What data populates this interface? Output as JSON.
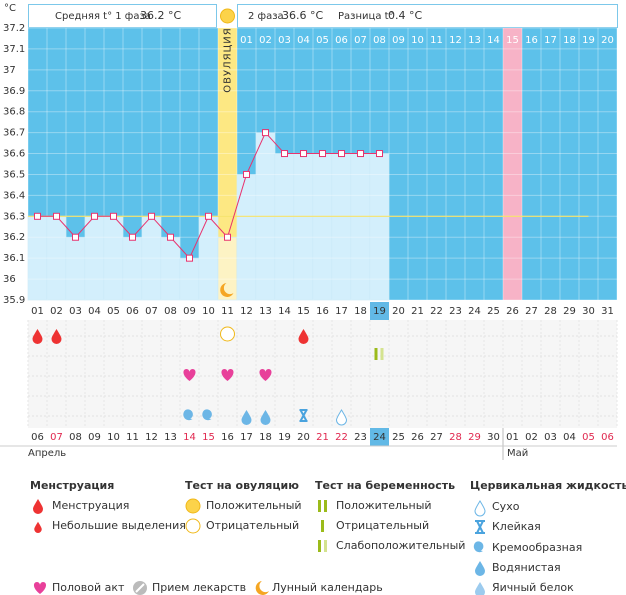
{
  "header": {
    "unit": "°C",
    "phase1_label": "Средняя t° 1 фаза",
    "phase1_value": "36.2 °C",
    "phase2_label": "2 фаза",
    "phase2_value": "36.6 °C",
    "diff_label": "Разница t°",
    "diff_value": "0.4 °C"
  },
  "chart_data": {
    "type": "line",
    "annotation": "ОВУЛЯЦИЯ",
    "categories": [
      "01",
      "02",
      "03",
      "04",
      "05",
      "06",
      "07",
      "08",
      "09",
      "10",
      "11",
      "12",
      "13",
      "14",
      "15",
      "16",
      "17",
      "18",
      "19",
      "20",
      "21",
      "22",
      "23",
      "24",
      "25",
      "26",
      "27",
      "28",
      "29",
      "30",
      "31"
    ],
    "phase2_days": [
      "01",
      "02",
      "03",
      "04",
      "05",
      "06",
      "07",
      "08",
      "09",
      "10",
      "11",
      "12",
      "13",
      "14",
      "15",
      "16",
      "17",
      "18",
      "19",
      "20"
    ],
    "values": [
      36.3,
      36.3,
      36.2,
      36.3,
      36.3,
      36.2,
      36.3,
      36.2,
      36.1,
      36.3,
      36.2,
      36.5,
      36.7,
      36.6,
      36.6,
      36.6,
      36.6,
      36.6,
      36.6,
      null,
      null,
      null,
      null,
      null,
      null,
      null,
      null,
      null,
      null,
      null,
      null
    ],
    "color": "#e8336e",
    "cover_line": 36.3,
    "ylim": [
      35.9,
      37.2
    ],
    "yticks": [
      35.9,
      36,
      36.1,
      36.2,
      36.3,
      36.4,
      36.5,
      36.6,
      36.7,
      36.8,
      36.9,
      37,
      37.1,
      37.2
    ],
    "grid": true,
    "dates": [
      "06",
      "07",
      "08",
      "09",
      "10",
      "11",
      "12",
      "13",
      "14",
      "15",
      "16",
      "17",
      "18",
      "19",
      "20",
      "21",
      "22",
      "23",
      "24",
      "25",
      "26",
      "27",
      "28",
      "29",
      "30",
      "01",
      "02",
      "03",
      "04",
      "05",
      "06"
    ],
    "months": [
      "Апрель",
      "Май"
    ]
  },
  "legend": {
    "menstruation": {
      "title": "Менструация",
      "items": [
        "Менструация",
        "Небольшие выделения"
      ]
    },
    "ovulation_test": {
      "title": "Тест на овуляцию",
      "items": [
        "Положительный",
        "Отрицательный"
      ]
    },
    "pregnancy_test": {
      "title": "Тест на беременность",
      "items": [
        "Положительный",
        "Отрицательный",
        "Слабоположительный"
      ]
    },
    "cervical": {
      "title": "Цервикальная жидкость",
      "items": [
        "Сухо",
        "Клейкая",
        "Кремообразная",
        "Водянистая",
        "Яичный белок"
      ]
    },
    "other": [
      "Половой акт",
      "Прием лекарств",
      "Лунный календарь"
    ]
  }
}
